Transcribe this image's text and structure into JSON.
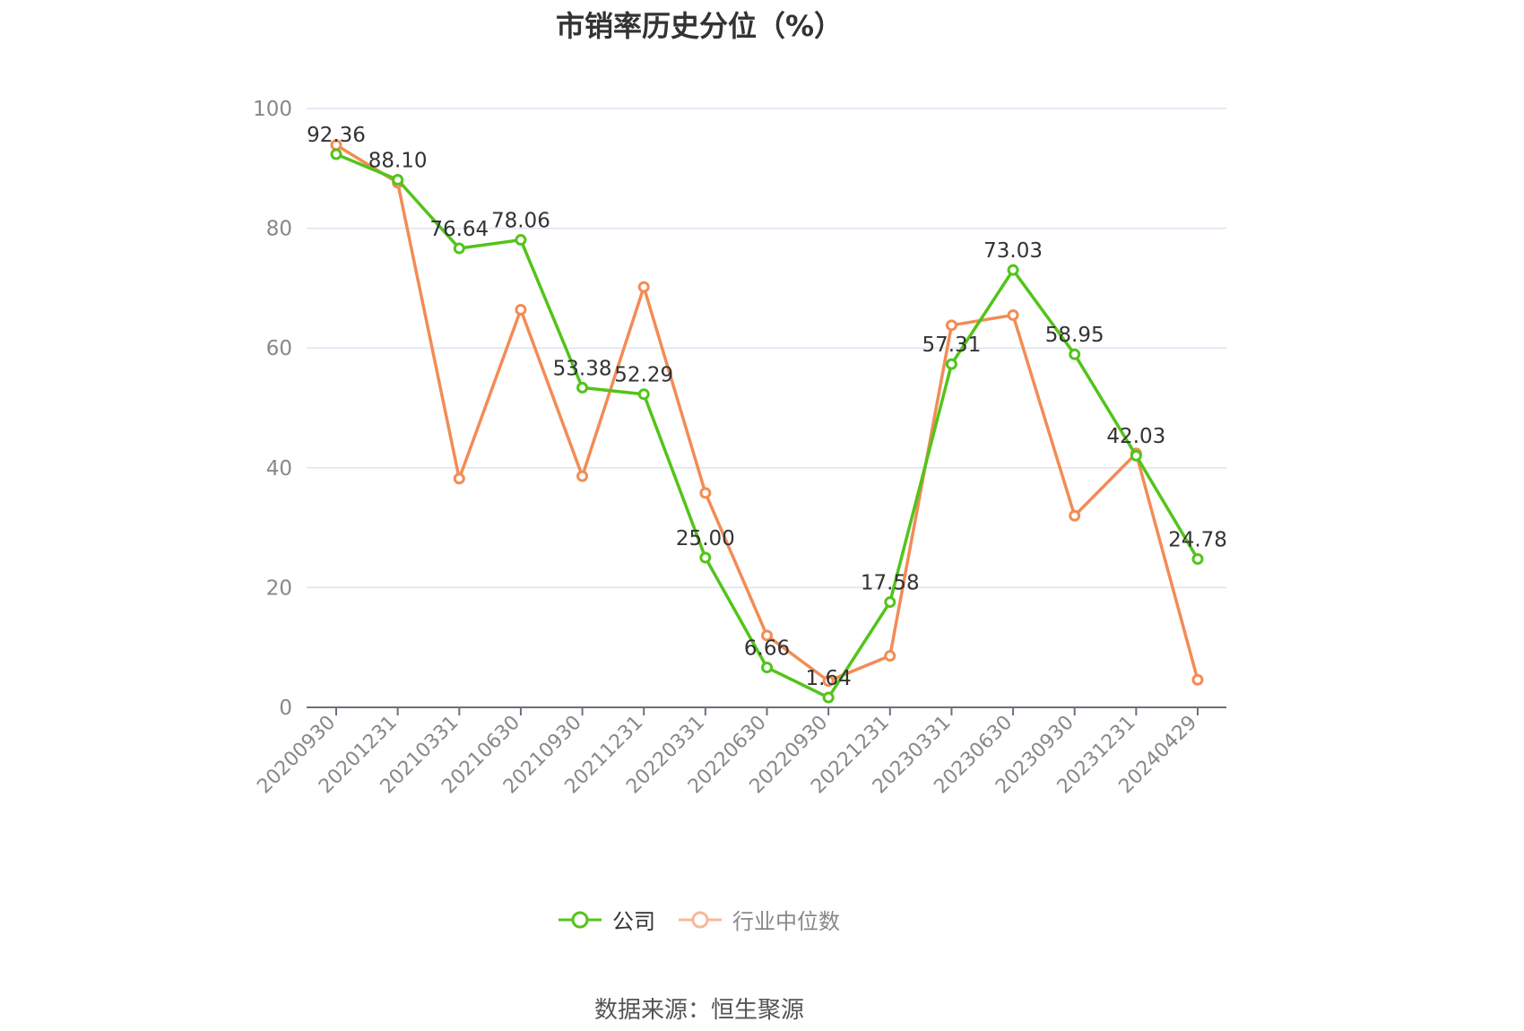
{
  "chart_data": {
    "type": "line",
    "title": "市销率历史分位（%）",
    "x": [
      "20200930",
      "20201231",
      "20210331",
      "20210630",
      "20210930",
      "20211231",
      "20220331",
      "20220630",
      "20220930",
      "20221231",
      "20230331",
      "20230630",
      "20230930",
      "20231231",
      "20240429"
    ],
    "ylim": [
      0,
      100
    ],
    "yticks": [
      0,
      20,
      40,
      60,
      80,
      100
    ],
    "grid": true,
    "legend_position": "bottom",
    "series": [
      {
        "name": "公司",
        "color": "#52c41a",
        "values": [
          92.36,
          88.1,
          76.64,
          78.06,
          53.38,
          52.29,
          25.0,
          6.66,
          1.64,
          17.58,
          57.31,
          73.03,
          58.95,
          42.03,
          24.78
        ],
        "labels": [
          "92.36",
          "88.10",
          "76.64",
          "78.06",
          "53.38",
          "52.29",
          "25.00",
          "6.66",
          "1.64",
          "17.58",
          "57.31",
          "73.03",
          "58.95",
          "42.03",
          "24.78"
        ]
      },
      {
        "name": "行业中位数",
        "color": "#f28c55",
        "values": [
          93.9,
          87.6,
          38.2,
          66.4,
          38.6,
          70.2,
          35.8,
          12.0,
          4.4,
          8.6,
          63.8,
          65.5,
          32.0,
          42.4,
          4.6
        ]
      }
    ],
    "source": "数据来源：恒生聚源"
  }
}
